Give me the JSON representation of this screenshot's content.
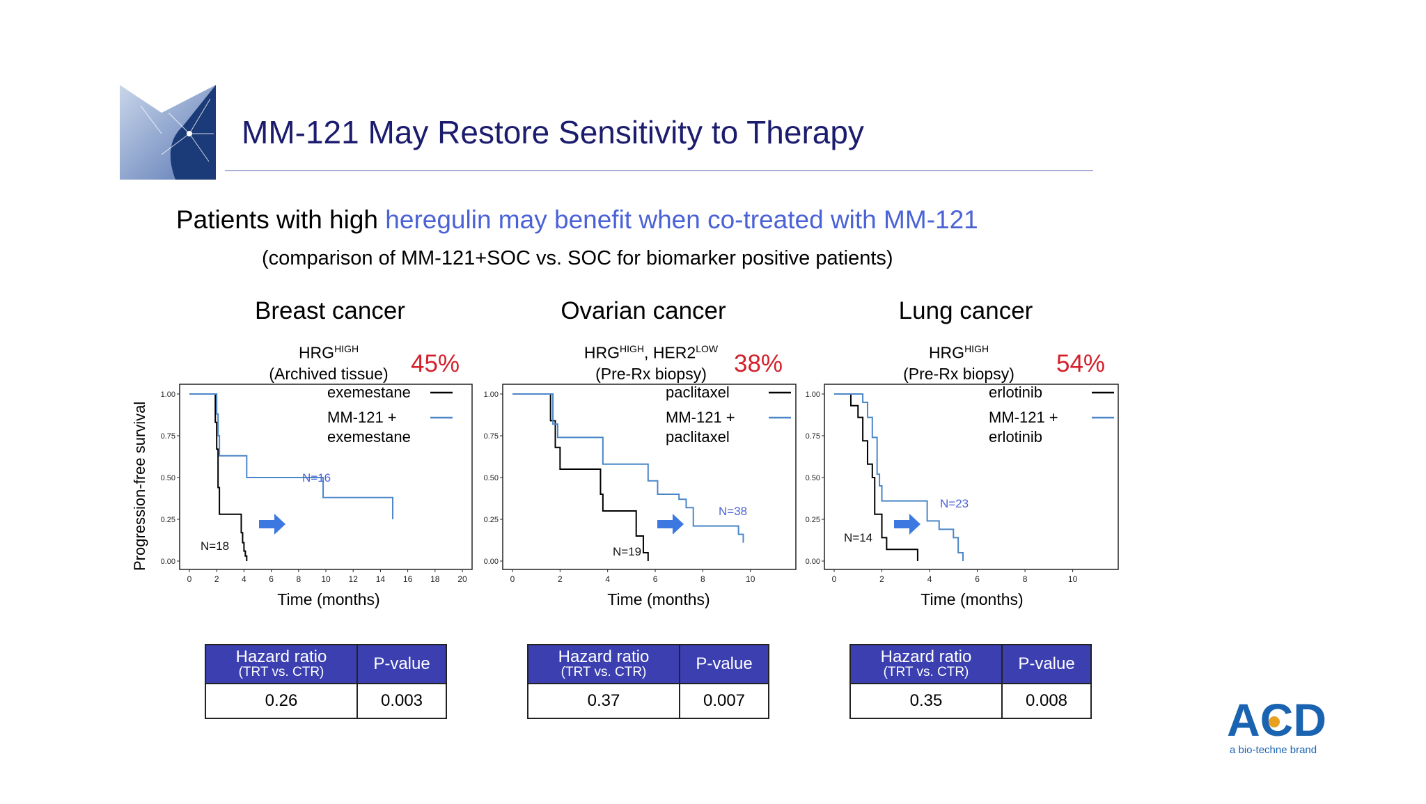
{
  "slide": {
    "title": "MM-121 May Restore Sensitivity to Therapy",
    "headline_pre": "Patients with high ",
    "headline_hl1": "heregulin",
    "headline_mid": " may benefit when co-treated with ",
    "headline_hl2": "MM-121",
    "subtitle": "(comparison of MM-121+SOC vs. SOC for biomarker positive patients)",
    "ylabel": "Progression-free survival",
    "brand_name": "ACD",
    "brand_tagline": "a bio-techne brand"
  },
  "panels": [
    {
      "title": "Breast cancer",
      "biomarker_main": "HRG",
      "biomarker_sup": "HIGH",
      "biomarker_extra": "",
      "biomarker_extra_sup": "",
      "sample": "(Archived tissue)",
      "pct": "45%",
      "xlabel": "Time (months)",
      "hazard_header": "Hazard ratio",
      "hazard_sub": "(TRT vs. CTR)",
      "p_header": "P-value",
      "hazard_value": "0.26",
      "p_value": "0.003"
    },
    {
      "title": "Ovarian cancer",
      "biomarker_main": "HRG",
      "biomarker_sup": "HIGH",
      "biomarker_extra": ", HER2",
      "biomarker_extra_sup": "LOW",
      "sample": "(Pre-Rx biopsy)",
      "pct": "38%",
      "xlabel": "Time (months)",
      "hazard_header": "Hazard ratio",
      "hazard_sub": "(TRT vs. CTR)",
      "p_header": "P-value",
      "hazard_value": "0.37",
      "p_value": "0.007"
    },
    {
      "title": "Lung cancer",
      "biomarker_main": "HRG",
      "biomarker_sup": "HIGH",
      "biomarker_extra": "",
      "biomarker_extra_sup": "",
      "sample": "(Pre-Rx biopsy)",
      "pct": "54%",
      "xlabel": "Time (months)",
      "hazard_header": "Hazard ratio",
      "hazard_sub": "(TRT vs. CTR)",
      "p_header": "P-value",
      "hazard_value": "0.35",
      "p_value": "0.008"
    }
  ],
  "colors": {
    "control": "#000000",
    "treatment": "#4a86c8",
    "n_label_treatment": "#4a62d6",
    "arrow": "#3c78e0",
    "title": "#1c1c6e",
    "pct": "#d3202a",
    "table_header": "#3b3fb0"
  },
  "chart_data": [
    {
      "type": "line",
      "title": "Breast cancer",
      "xlabel": "Time (months)",
      "ylabel": "Progression-free survival",
      "xlim": [
        0,
        20
      ],
      "ylim": [
        0,
        1
      ],
      "xticks": [
        0,
        2,
        4,
        6,
        8,
        10,
        12,
        14,
        16,
        18,
        20
      ],
      "yticks": [
        "0.00",
        "0.25",
        "0.50",
        "0.75",
        "1.00"
      ],
      "series": [
        {
          "name": "exemestane",
          "n_label": "N=18",
          "x": [
            0,
            1.8,
            1.9,
            2.0,
            2.1,
            2.2,
            3.7,
            3.8,
            3.9,
            4.0,
            4.1,
            4.2
          ],
          "y": [
            1.0,
            1.0,
            0.83,
            0.67,
            0.44,
            0.28,
            0.28,
            0.17,
            0.11,
            0.06,
            0.03,
            0.0
          ]
        },
        {
          "name": "MM-121 + exemestane",
          "n_label": "N=16",
          "x": [
            0,
            1.9,
            2.0,
            2.1,
            2.2,
            3.8,
            4.2,
            8.0,
            9.8,
            14.9
          ],
          "y": [
            1.0,
            1.0,
            0.88,
            0.75,
            0.63,
            0.63,
            0.5,
            0.5,
            0.38,
            0.25
          ],
          "end_x": 14.9
        }
      ],
      "legend": "top-right"
    },
    {
      "type": "line",
      "title": "Ovarian cancer",
      "xlabel": "Time (months)",
      "xlim": [
        0,
        11.5
      ],
      "ylim": [
        0,
        1
      ],
      "xticks": [
        0,
        2,
        4,
        6,
        8,
        10
      ],
      "yticks": [
        "0.00",
        "0.25",
        "0.50",
        "0.75",
        "1.00"
      ],
      "series": [
        {
          "name": "paclitaxel",
          "n_label": "N=19",
          "x": [
            0,
            1.4,
            1.6,
            1.8,
            2.0,
            3.6,
            3.7,
            3.8,
            5.2,
            5.5,
            5.7
          ],
          "y": [
            1.0,
            1.0,
            0.84,
            0.68,
            0.55,
            0.55,
            0.4,
            0.3,
            0.15,
            0.05,
            0.0
          ]
        },
        {
          "name": "MM-121 + paclitaxel",
          "n_label": "N=38",
          "x": [
            0,
            1.4,
            1.7,
            1.9,
            3.6,
            3.8,
            5.3,
            5.7,
            6.1,
            7.0,
            7.3,
            7.6,
            9.3,
            9.5,
            9.7
          ],
          "y": [
            1.0,
            1.0,
            0.82,
            0.74,
            0.74,
            0.58,
            0.58,
            0.48,
            0.4,
            0.37,
            0.32,
            0.21,
            0.21,
            0.16,
            0.11
          ],
          "end_x": 9.7
        }
      ],
      "legend": "top-right"
    },
    {
      "type": "line",
      "title": "Lung cancer",
      "xlabel": "Time (months)",
      "xlim": [
        0,
        11.5
      ],
      "ylim": [
        0,
        1
      ],
      "xticks": [
        0,
        2,
        4,
        6,
        8,
        10
      ],
      "yticks": [
        "0.00",
        "0.25",
        "0.50",
        "0.75",
        "1.00"
      ],
      "series": [
        {
          "name": "erlotinib",
          "n_label": "N=14",
          "x": [
            0,
            0.5,
            0.7,
            1.0,
            1.2,
            1.4,
            1.6,
            1.7,
            2.0,
            2.2,
            3.5
          ],
          "y": [
            1.0,
            1.0,
            0.93,
            0.86,
            0.72,
            0.58,
            0.5,
            0.28,
            0.14,
            0.07,
            0.0
          ]
        },
        {
          "name": "MM-121 + erlotinib",
          "n_label": "N=23",
          "x": [
            0,
            0.6,
            1.2,
            1.4,
            1.6,
            1.8,
            1.9,
            2.0,
            3.7,
            3.9,
            4.4,
            5.0,
            5.2,
            5.4
          ],
          "y": [
            1.0,
            1.0,
            0.95,
            0.86,
            0.74,
            0.52,
            0.45,
            0.36,
            0.36,
            0.24,
            0.19,
            0.14,
            0.05,
            0.0
          ],
          "end_x": 5.4
        }
      ],
      "legend": "top-right"
    }
  ]
}
